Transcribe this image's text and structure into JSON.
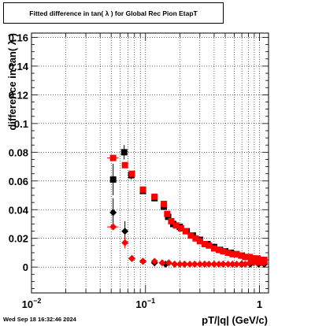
{
  "chart_data": {
    "type": "scatter",
    "title": "Fitted difference in tan( λ ) for Global Rec Pion EtapT",
    "xlabel": "pT/|q| (GeV/c)",
    "ylabel": "difference in tan( λ )",
    "xscale": "log",
    "xlim": [
      0.01,
      1.2
    ],
    "ylim": [
      -0.018,
      0.163
    ],
    "grid": true,
    "legend": "none",
    "x_tick_labels": [
      {
        "value": 0.01,
        "base": "10",
        "exp": "−2"
      },
      {
        "value": 0.1,
        "base": "10",
        "exp": "−1"
      },
      {
        "value": 1,
        "base": "1",
        "exp": ""
      }
    ],
    "y_tick_labels": [
      "0",
      "0.02",
      "0.04",
      "0.06",
      "0.08",
      "0.1",
      "0.12",
      "0.14",
      "0.16"
    ],
    "y_tick_values": [
      0,
      0.02,
      0.04,
      0.06,
      0.08,
      0.1,
      0.12,
      0.14,
      0.16
    ],
    "series": [
      {
        "marker": "square",
        "color": "#000000",
        "points": [
          {
            "x": 0.052,
            "y": 0.061,
            "err": 0.011
          },
          {
            "x": 0.065,
            "y": 0.08,
            "err": 0.005
          },
          {
            "x": 0.075,
            "y": 0.064,
            "err": 0.003
          },
          {
            "x": 0.095,
            "y": 0.053,
            "err": 0.002
          },
          {
            "x": 0.12,
            "y": 0.048
          },
          {
            "x": 0.145,
            "y": 0.042
          },
          {
            "x": 0.158,
            "y": 0.035
          },
          {
            "x": 0.175,
            "y": 0.03
          },
          {
            "x": 0.2,
            "y": 0.028
          },
          {
            "x": 0.23,
            "y": 0.025
          },
          {
            "x": 0.26,
            "y": 0.022
          },
          {
            "x": 0.3,
            "y": 0.019
          },
          {
            "x": 0.35,
            "y": 0.016
          },
          {
            "x": 0.4,
            "y": 0.014
          },
          {
            "x": 0.45,
            "y": 0.012
          },
          {
            "x": 0.5,
            "y": 0.011
          },
          {
            "x": 0.56,
            "y": 0.01
          },
          {
            "x": 0.63,
            "y": 0.009
          },
          {
            "x": 0.7,
            "y": 0.008
          },
          {
            "x": 0.78,
            "y": 0.007
          },
          {
            "x": 0.86,
            "y": 0.006
          },
          {
            "x": 0.95,
            "y": 0.005
          },
          {
            "x": 1.03,
            "y": 0.005
          },
          {
            "x": 1.1,
            "y": 0.004
          }
        ]
      },
      {
        "marker": "square",
        "color": "#ff0000",
        "points": [
          {
            "x": 0.052,
            "y": 0.076,
            "xerr": 0.006
          },
          {
            "x": 0.066,
            "y": 0.071
          },
          {
            "x": 0.076,
            "y": 0.065
          },
          {
            "x": 0.095,
            "y": 0.054
          },
          {
            "x": 0.12,
            "y": 0.049
          },
          {
            "x": 0.145,
            "y": 0.044
          },
          {
            "x": 0.155,
            "y": 0.037
          },
          {
            "x": 0.168,
            "y": 0.032
          },
          {
            "x": 0.185,
            "y": 0.029
          },
          {
            "x": 0.205,
            "y": 0.027
          },
          {
            "x": 0.225,
            "y": 0.025
          },
          {
            "x": 0.25,
            "y": 0.022
          },
          {
            "x": 0.275,
            "y": 0.02
          },
          {
            "x": 0.3,
            "y": 0.018
          },
          {
            "x": 0.33,
            "y": 0.016
          },
          {
            "x": 0.36,
            "y": 0.015
          },
          {
            "x": 0.4,
            "y": 0.013
          },
          {
            "x": 0.44,
            "y": 0.012
          },
          {
            "x": 0.48,
            "y": 0.011
          },
          {
            "x": 0.53,
            "y": 0.01
          },
          {
            "x": 0.58,
            "y": 0.009
          },
          {
            "x": 0.63,
            "y": 0.009
          },
          {
            "x": 0.69,
            "y": 0.008
          },
          {
            "x": 0.75,
            "y": 0.007
          },
          {
            "x": 0.82,
            "y": 0.007
          },
          {
            "x": 0.89,
            "y": 0.006
          },
          {
            "x": 0.96,
            "y": 0.006
          },
          {
            "x": 1.03,
            "y": 0.005
          },
          {
            "x": 1.1,
            "y": 0.005
          }
        ]
      },
      {
        "marker": "diamond",
        "color": "#000000",
        "points": [
          {
            "x": 0.052,
            "y": 0.038,
            "err": 0.01
          },
          {
            "x": 0.066,
            "y": 0.025,
            "err": 0.007
          },
          {
            "x": 0.076,
            "y": 0.006
          },
          {
            "x": 0.095,
            "y": 0.004
          },
          {
            "x": 0.12,
            "y": 0.003
          },
          {
            "x": 0.15,
            "y": 0.002
          },
          {
            "x": 0.18,
            "y": 0.002
          },
          {
            "x": 0.22,
            "y": 0.002
          },
          {
            "x": 0.27,
            "y": 0.002
          },
          {
            "x": 0.33,
            "y": 0.002
          },
          {
            "x": 0.4,
            "y": 0.002
          },
          {
            "x": 0.48,
            "y": 0.002
          },
          {
            "x": 0.58,
            "y": 0.002
          },
          {
            "x": 0.7,
            "y": 0.002
          },
          {
            "x": 0.83,
            "y": 0.002
          },
          {
            "x": 0.98,
            "y": 0.002
          },
          {
            "x": 1.1,
            "y": 0.002
          }
        ]
      },
      {
        "marker": "diamond",
        "color": "#ff0000",
        "points": [
          {
            "x": 0.052,
            "y": 0.028,
            "xerr": 0.006
          },
          {
            "x": 0.066,
            "y": 0.017,
            "err": 0.004
          },
          {
            "x": 0.076,
            "y": 0.006
          },
          {
            "x": 0.095,
            "y": 0.004
          },
          {
            "x": 0.12,
            "y": 0.004
          },
          {
            "x": 0.14,
            "y": 0.003
          },
          {
            "x": 0.16,
            "y": 0.003
          },
          {
            "x": 0.18,
            "y": 0.002
          },
          {
            "x": 0.2,
            "y": 0.002
          },
          {
            "x": 0.22,
            "y": 0.002
          },
          {
            "x": 0.245,
            "y": 0.002
          },
          {
            "x": 0.27,
            "y": 0.002
          },
          {
            "x": 0.3,
            "y": 0.002
          },
          {
            "x": 0.33,
            "y": 0.002
          },
          {
            "x": 0.36,
            "y": 0.002
          },
          {
            "x": 0.4,
            "y": 0.002
          },
          {
            "x": 0.44,
            "y": 0.002
          },
          {
            "x": 0.48,
            "y": 0.002
          },
          {
            "x": 0.53,
            "y": 0.002
          },
          {
            "x": 0.58,
            "y": 0.002
          },
          {
            "x": 0.63,
            "y": 0.002
          },
          {
            "x": 0.69,
            "y": 0.002
          },
          {
            "x": 0.75,
            "y": 0.002
          },
          {
            "x": 0.82,
            "y": 0.003
          },
          {
            "x": 0.89,
            "y": 0.003
          },
          {
            "x": 0.96,
            "y": 0.003
          },
          {
            "x": 1.03,
            "y": 0.003
          },
          {
            "x": 1.1,
            "y": 0.003
          }
        ]
      }
    ]
  },
  "timestamp": "Wed Sep 18 16:32:46 2024"
}
